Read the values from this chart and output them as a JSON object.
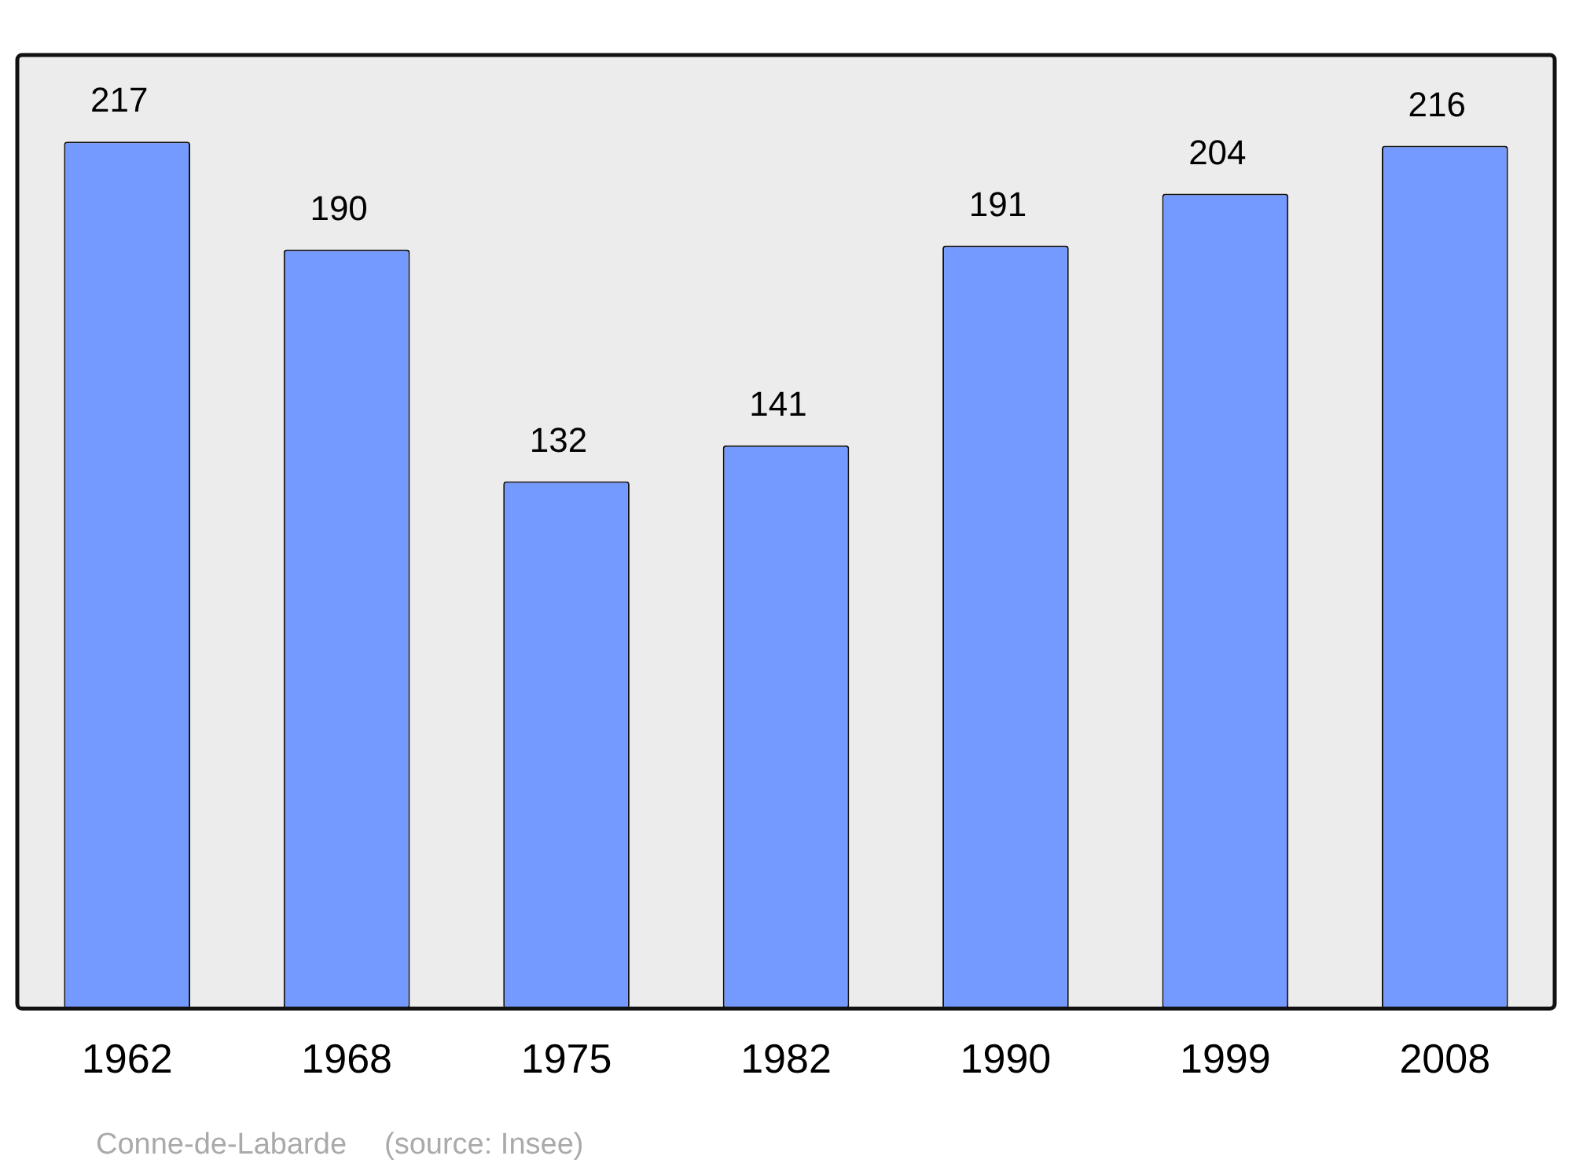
{
  "chart_data": {
    "type": "bar",
    "categories": [
      "1962",
      "1968",
      "1975",
      "1982",
      "1990",
      "1999",
      "2008"
    ],
    "values": [
      217,
      190,
      132,
      141,
      191,
      204,
      216
    ],
    "color": "#7499ff",
    "data_labels": true,
    "grid": false,
    "legend": false,
    "annotations": [
      "Conne-de-Labarde",
      "(source: Insee)"
    ]
  }
}
